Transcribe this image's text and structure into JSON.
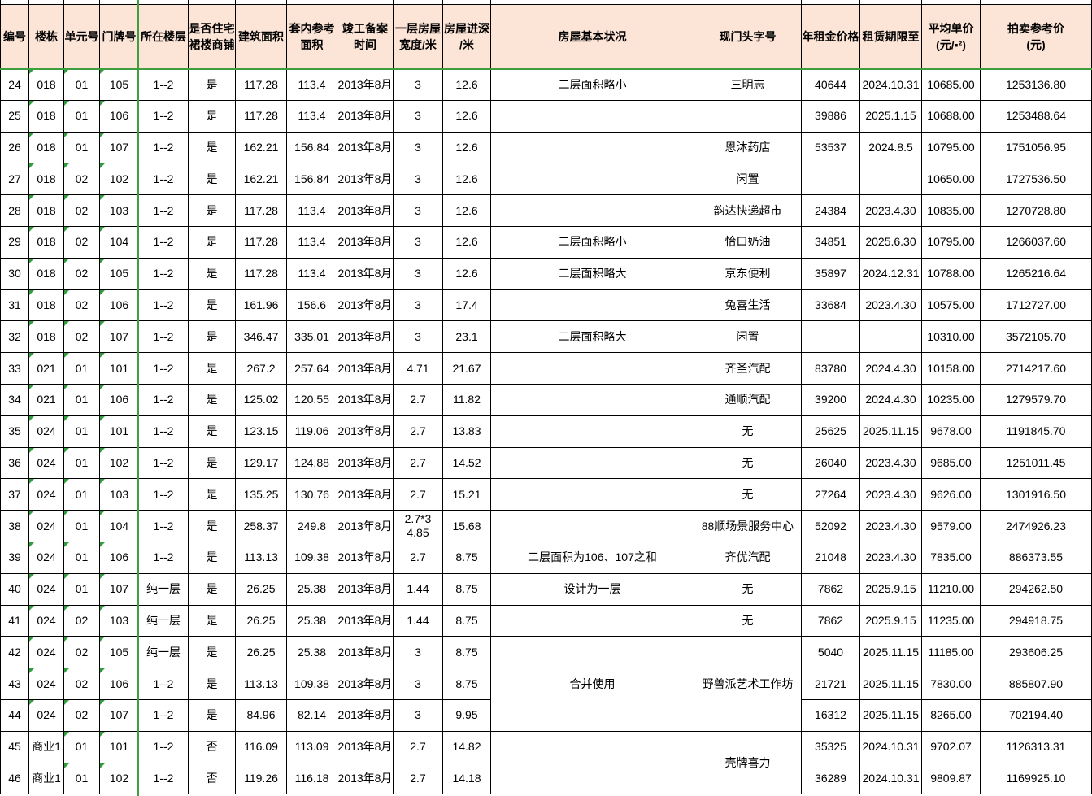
{
  "colors": {
    "header_bg": "#fce4d6",
    "grid_border": "#000000",
    "freeze_line": "#3f9e3f",
    "error_triangle": "#2f9e3c"
  },
  "table": {
    "columns": [
      {
        "key": "id",
        "label": "编号"
      },
      {
        "key": "building",
        "label": "楼栋"
      },
      {
        "key": "unit",
        "label": "单元号"
      },
      {
        "key": "door",
        "label": "门牌号"
      },
      {
        "key": "floor",
        "label": "所在楼层"
      },
      {
        "key": "shop",
        "label": "是否住宅\n裙楼商铺"
      },
      {
        "key": "area",
        "label": "建筑面积"
      },
      {
        "key": "inner",
        "label": "套内参考\n面积"
      },
      {
        "key": "date",
        "label": "竣工备案\n时间"
      },
      {
        "key": "width",
        "label": "一层房屋\n宽度/米"
      },
      {
        "key": "depth",
        "label": "房屋进深\n/米"
      },
      {
        "key": "condition",
        "label": "房屋基本状况"
      },
      {
        "key": "name",
        "label": "现门头字号"
      },
      {
        "key": "rent",
        "label": "年租金价格"
      },
      {
        "key": "lease",
        "label": "租赁期限至"
      },
      {
        "key": "price",
        "label": "平均单价\n(元/▪²)"
      },
      {
        "key": "auction",
        "label": "拍卖参考价\n(元)"
      }
    ],
    "rows": [
      {
        "id": "24",
        "building": "018",
        "unit": "01",
        "door": "105",
        "floor": "1--2",
        "shop": "是",
        "area": "117.28",
        "inner": "113.4",
        "date": "2013年8月",
        "width": "3",
        "depth": "12.6",
        "condition": "二层面积略小",
        "name": "三明志",
        "rent": "40644",
        "lease": "2024.10.31",
        "price": "10685.00",
        "auction": "1253136.80"
      },
      {
        "id": "25",
        "building": "018",
        "unit": "01",
        "door": "106",
        "floor": "1--2",
        "shop": "是",
        "area": "117.28",
        "inner": "113.4",
        "date": "2013年8月",
        "width": "3",
        "depth": "12.6",
        "condition": "",
        "name": "",
        "rent": "39886",
        "lease": "2025.1.15",
        "price": "10688.00",
        "auction": "1253488.64"
      },
      {
        "id": "26",
        "building": "018",
        "unit": "01",
        "door": "107",
        "floor": "1--2",
        "shop": "是",
        "area": "162.21",
        "inner": "156.84",
        "date": "2013年8月",
        "width": "3",
        "depth": "12.6",
        "condition": "",
        "name": "恩沐药店",
        "rent": "53537",
        "lease": "2024.8.5",
        "price": "10795.00",
        "auction": "1751056.95"
      },
      {
        "id": "27",
        "building": "018",
        "unit": "02",
        "door": "102",
        "floor": "1--2",
        "shop": "是",
        "area": "162.21",
        "inner": "156.84",
        "date": "2013年8月",
        "width": "3",
        "depth": "12.6",
        "condition": "",
        "name": "闲置",
        "rent": "",
        "lease": "",
        "price": "10650.00",
        "auction": "1727536.50"
      },
      {
        "id": "28",
        "building": "018",
        "unit": "02",
        "door": "103",
        "floor": "1--2",
        "shop": "是",
        "area": "117.28",
        "inner": "113.4",
        "date": "2013年8月",
        "width": "3",
        "depth": "12.6",
        "condition": "",
        "name": "韵达快递超市",
        "rent": "24384",
        "lease": "2023.4.30",
        "price": "10835.00",
        "auction": "1270728.80"
      },
      {
        "id": "29",
        "building": "018",
        "unit": "02",
        "door": "104",
        "floor": "1--2",
        "shop": "是",
        "area": "117.28",
        "inner": "113.4",
        "date": "2013年8月",
        "width": "3",
        "depth": "12.6",
        "condition": "二层面积略小",
        "name": "恰口奶油",
        "rent": "34851",
        "lease": "2025.6.30",
        "price": "10795.00",
        "auction": "1266037.60"
      },
      {
        "id": "30",
        "building": "018",
        "unit": "02",
        "door": "105",
        "floor": "1--2",
        "shop": "是",
        "area": "117.28",
        "inner": "113.4",
        "date": "2013年8月",
        "width": "3",
        "depth": "12.6",
        "condition": "二层面积略大",
        "name": "京东便利",
        "rent": "35897",
        "lease": "2024.12.31",
        "price": "10788.00",
        "auction": "1265216.64"
      },
      {
        "id": "31",
        "building": "018",
        "unit": "02",
        "door": "106",
        "floor": "1--2",
        "shop": "是",
        "area": "161.96",
        "inner": "156.6",
        "date": "2013年8月",
        "width": "3",
        "depth": "17.4",
        "condition": "",
        "name": "兔喜生活",
        "rent": "33684",
        "lease": "2023.4.30",
        "price": "10575.00",
        "auction": "1712727.00"
      },
      {
        "id": "32",
        "building": "018",
        "unit": "02",
        "door": "107",
        "floor": "1--2",
        "shop": "是",
        "area": "346.47",
        "inner": "335.01",
        "date": "2013年8月",
        "width": "3",
        "depth": "23.1",
        "condition": "二层面积略大",
        "name": "闲置",
        "rent": "",
        "lease": "",
        "price": "10310.00",
        "auction": "3572105.70"
      },
      {
        "id": "33",
        "building": "021",
        "unit": "01",
        "door": "101",
        "floor": "1--2",
        "shop": "是",
        "area": "267.2",
        "inner": "257.64",
        "date": "2013年8月",
        "width": "4.71",
        "depth": "21.67",
        "condition": "",
        "name": "齐圣汽配",
        "rent": "83780",
        "lease": "2024.4.30",
        "price": "10158.00",
        "auction": "2714217.60"
      },
      {
        "id": "34",
        "building": "021",
        "unit": "01",
        "door": "106",
        "floor": "1--2",
        "shop": "是",
        "area": "125.02",
        "inner": "120.55",
        "date": "2013年8月",
        "width": "2.7",
        "depth": "11.82",
        "condition": "",
        "name": "通顺汽配",
        "rent": "39200",
        "lease": "2024.4.30",
        "price": "10235.00",
        "auction": "1279579.70"
      },
      {
        "id": "35",
        "building": "024",
        "unit": "01",
        "door": "101",
        "floor": "1--2",
        "shop": "是",
        "area": "123.15",
        "inner": "119.06",
        "date": "2013年8月",
        "width": "2.7",
        "depth": "13.83",
        "condition": "",
        "name": "无",
        "rent": "25625",
        "lease": "2025.11.15",
        "price": "9678.00",
        "auction": "1191845.70"
      },
      {
        "id": "36",
        "building": "024",
        "unit": "01",
        "door": "102",
        "floor": "1--2",
        "shop": "是",
        "area": "129.17",
        "inner": "124.88",
        "date": "2013年8月",
        "width": "2.7",
        "depth": "14.52",
        "condition": "",
        "name": "无",
        "rent": "26040",
        "lease": "2023.4.30",
        "price": "9685.00",
        "auction": "1251011.45"
      },
      {
        "id": "37",
        "building": "024",
        "unit": "01",
        "door": "103",
        "floor": "1--2",
        "shop": "是",
        "area": "135.25",
        "inner": "130.76",
        "date": "2013年8月",
        "width": "2.7",
        "depth": "15.21",
        "condition": "",
        "name": "无",
        "rent": "27264",
        "lease": "2023.4.30",
        "price": "9626.00",
        "auction": "1301916.50"
      },
      {
        "id": "38",
        "building": "024",
        "unit": "01",
        "door": "104",
        "floor": "1--2",
        "shop": "是",
        "area": "258.37",
        "inner": "249.8",
        "date": "2013年8月",
        "width": "2.7*3\n4.85",
        "depth": "15.68",
        "condition": "",
        "name": "88顺场景服务中心",
        "rent": "52092",
        "lease": "2023.4.30",
        "price": "9579.00",
        "auction": "2474926.23"
      },
      {
        "id": "39",
        "building": "024",
        "unit": "01",
        "door": "106",
        "floor": "1--2",
        "shop": "是",
        "area": "113.13",
        "inner": "109.38",
        "date": "2013年8月",
        "width": "2.7",
        "depth": "8.75",
        "condition": "二层面积为106、107之和",
        "name": "齐优汽配",
        "rent": "21048",
        "lease": "2023.4.30",
        "price": "7835.00",
        "auction": "886373.55"
      },
      {
        "id": "40",
        "building": "024",
        "unit": "01",
        "door": "107",
        "floor": "纯一层",
        "shop": "是",
        "area": "26.25",
        "inner": "25.38",
        "date": "2013年8月",
        "width": "1.44",
        "depth": "8.75",
        "condition": "设计为一层",
        "name": "无",
        "rent": "7862",
        "lease": "2025.9.15",
        "price": "11210.00",
        "auction": "294262.50"
      },
      {
        "id": "41",
        "building": "024",
        "unit": "02",
        "door": "103",
        "floor": "纯一层",
        "shop": "是",
        "area": "26.25",
        "inner": "25.38",
        "date": "2013年8月",
        "width": "1.44",
        "depth": "8.75",
        "condition": "",
        "name": "无",
        "rent": "7862",
        "lease": "2025.9.15",
        "price": "11235.00",
        "auction": "294918.75"
      },
      {
        "id": "42",
        "building": "024",
        "unit": "02",
        "door": "105",
        "floor": "纯一层",
        "shop": "是",
        "area": "26.25",
        "inner": "25.38",
        "date": "2013年8月",
        "width": "3",
        "depth": "8.75",
        "condition": "合并使用",
        "name": "野兽派艺术工作坊",
        "rent": "5040",
        "lease": "2025.11.15",
        "price": "11185.00",
        "auction": "293606.25"
      },
      {
        "id": "43",
        "building": "024",
        "unit": "02",
        "door": "106",
        "floor": "1--2",
        "shop": "是",
        "area": "113.13",
        "inner": "109.38",
        "date": "2013年8月",
        "width": "3",
        "depth": "8.75",
        "condition": "",
        "name": "",
        "rent": "21721",
        "lease": "2025.11.15",
        "price": "7830.00",
        "auction": "885807.90"
      },
      {
        "id": "44",
        "building": "024",
        "unit": "02",
        "door": "107",
        "floor": "1--2",
        "shop": "是",
        "area": "84.96",
        "inner": "82.14",
        "date": "2013年8月",
        "width": "3",
        "depth": "9.95",
        "condition": "",
        "name": "",
        "rent": "16312",
        "lease": "2025.11.15",
        "price": "8265.00",
        "auction": "702194.40"
      },
      {
        "id": "45",
        "building": "商业1",
        "unit": "01",
        "door": "101",
        "floor": "1--2",
        "shop": "否",
        "area": "116.09",
        "inner": "113.09",
        "date": "2013年8月",
        "width": "2.7",
        "depth": "14.82",
        "condition": "",
        "name": "壳牌喜力",
        "rent": "35325",
        "lease": "2024.10.31",
        "price": "9702.07",
        "auction": "1126313.31"
      },
      {
        "id": "46",
        "building": "商业1",
        "unit": "01",
        "door": "102",
        "floor": "1--2",
        "shop": "否",
        "area": "119.26",
        "inner": "116.18",
        "date": "2013年8月",
        "width": "2.7",
        "depth": "14.18",
        "condition": "",
        "name": "",
        "rent": "36289",
        "lease": "2024.10.31",
        "price": "9809.87",
        "auction": "1169925.10"
      }
    ],
    "merges": [
      {
        "row": "42",
        "col": "condition",
        "rowspan": 3
      },
      {
        "row": "42",
        "col": "name",
        "rowspan": 3
      },
      {
        "row": "45",
        "col": "name",
        "rowspan": 2,
        "valign": "bottom"
      }
    ]
  }
}
